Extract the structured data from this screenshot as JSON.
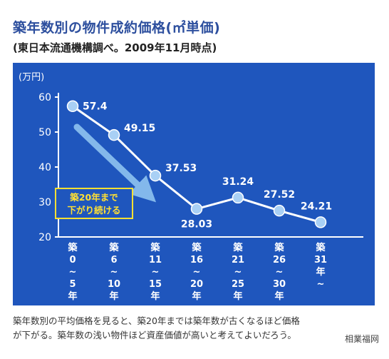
{
  "title": "築年数別の物件成約価格(㎡単価)",
  "subtitle": "(東日本流通機構調べ。2009年11月時点)",
  "chart_data": {
    "type": "line",
    "ylabel": "(万円)",
    "ylim": [
      20,
      60
    ],
    "yticks": [
      "60",
      "50",
      "40",
      "30",
      "20"
    ],
    "categories": [
      [
        "築",
        "0",
        "~",
        "5",
        "年"
      ],
      [
        "築",
        "6",
        "~",
        "10",
        "年"
      ],
      [
        "築",
        "11",
        "~",
        "15",
        "年"
      ],
      [
        "築",
        "16",
        "~",
        "20",
        "年"
      ],
      [
        "築",
        "21",
        "~",
        "25",
        "年"
      ],
      [
        "築",
        "26",
        "~",
        "30",
        "年"
      ],
      [
        "築",
        "31",
        "年",
        "~"
      ]
    ],
    "values": [
      57.4,
      49.15,
      37.53,
      28.03,
      31.24,
      27.52,
      24.21
    ],
    "data_labels": [
      "57.4",
      "49.15",
      "37.53",
      "28.03",
      "31.24",
      "27.52",
      "24.21"
    ],
    "annotation": [
      "築20年まで",
      "下がり続ける"
    ],
    "colors": {
      "background": "#1f56bd",
      "line": "#ffffff",
      "marker": "#a9d0f5",
      "arrow": "#8ec3f0",
      "annotation_box": "#ffe033"
    }
  },
  "caption": [
    "築年数別の平均価格を見ると、築20年までは築年数が古くなるほど価格",
    "が下がる。築年数の浅い物件ほど資産価値が高いと考えてよいだろう。"
  ],
  "watermark": "相業福网"
}
